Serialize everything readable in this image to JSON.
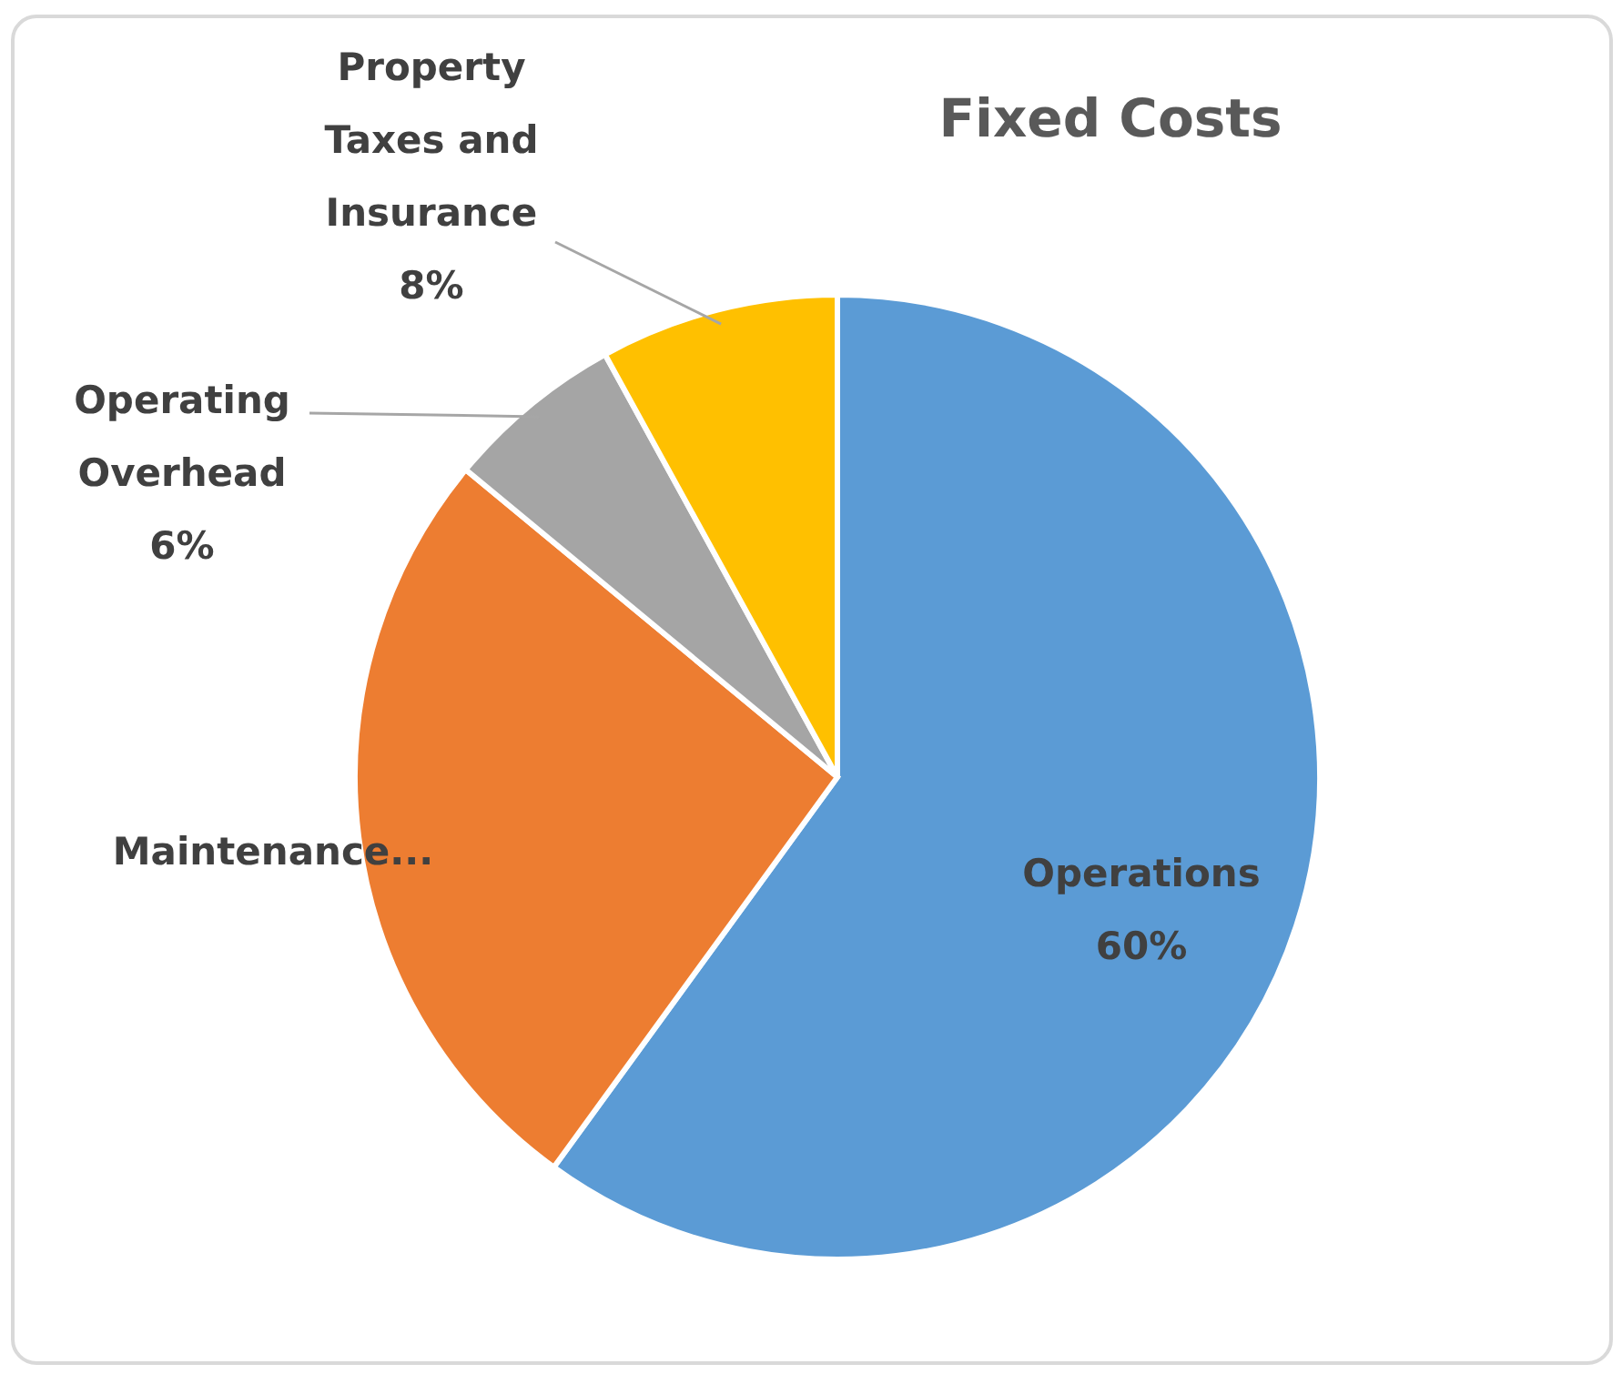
{
  "chart_data": {
    "type": "pie",
    "title": "Fixed Costs",
    "categories": [
      "Operations",
      "Maintenance...",
      "Operating Overhead",
      "Property Taxes and Insurance"
    ],
    "values": [
      60,
      26,
      6,
      8
    ],
    "colors": [
      "#5b9bd5",
      "#ed7d31",
      "#a5a5a5",
      "#ffc000"
    ],
    "value_labels": [
      "60%",
      null,
      "6%",
      "8%"
    ],
    "legend": false
  }
}
